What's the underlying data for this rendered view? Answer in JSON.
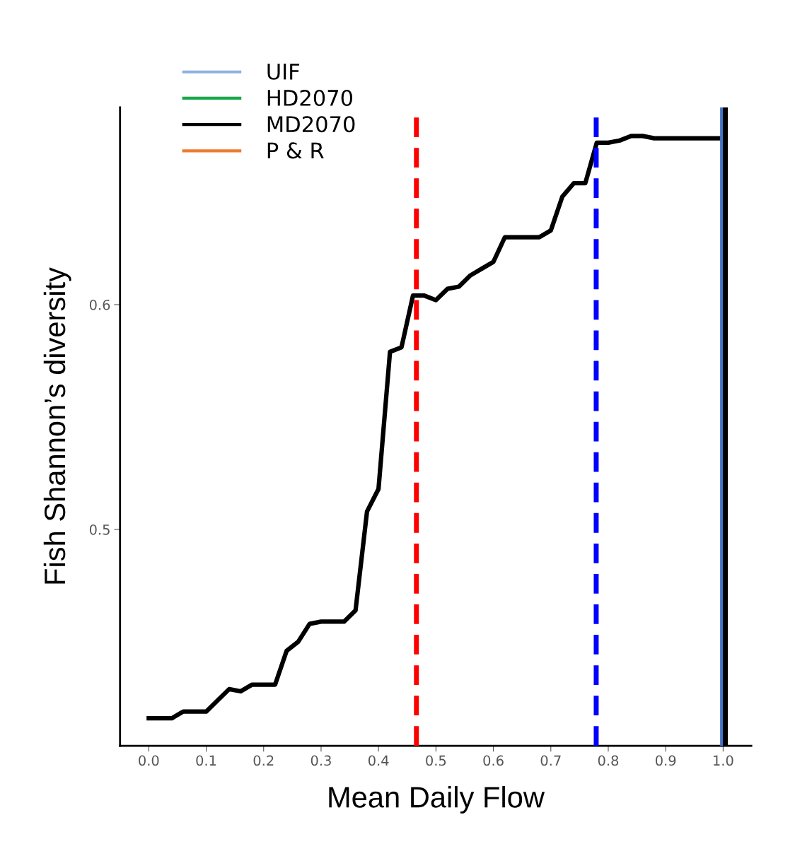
{
  "chart_data": {
    "type": "line",
    "xlabel": "Mean Daily Flow",
    "ylabel": "Fish Shannon’s diversity",
    "xlim": [
      -0.05,
      1.049
    ],
    "ylim": [
      0.4038,
      0.6877
    ],
    "xticks": [
      {
        "value": 0,
        "label": "0.0"
      },
      0.1,
      0.2,
      0.3,
      0.4,
      0.5,
      0.6,
      0.7,
      0.8,
      0.9,
      {
        "value": 1,
        "label": "1.0"
      }
    ],
    "yticks": [
      0.5,
      0.6
    ],
    "grid": false,
    "legend": "top left",
    "line_style": "solid",
    "marker": "none",
    "series": [
      {
        "name": "UIF",
        "color": "#8eb0e0"
      },
      {
        "name": "HD2070",
        "color": "#1aa64a"
      },
      {
        "name": "MD2070",
        "color": "#000000",
        "x": [
          0,
          0.04,
          0.06,
          0.08,
          0.1,
          0.12,
          0.14,
          0.16,
          0.18,
          0.2,
          0.22,
          0.24,
          0.26,
          0.28,
          0.3,
          0.32,
          0.34,
          0.36,
          0.38,
          0.4,
          0.42,
          0.44,
          0.46,
          0.48,
          0.5,
          0.52,
          0.54,
          0.56,
          0.58,
          0.6,
          0.62,
          0.64,
          0.66,
          0.68,
          0.7,
          0.72,
          0.74,
          0.76,
          0.78,
          0.8,
          0.82,
          0.84,
          0.86,
          0.88,
          1.0
        ],
        "values": [
          0.416,
          0.416,
          0.419,
          0.419,
          0.419,
          0.424,
          0.429,
          0.428,
          0.431,
          0.431,
          0.431,
          0.446,
          0.45,
          0.458,
          0.459,
          0.459,
          0.459,
          0.464,
          0.508,
          0.518,
          0.579,
          0.581,
          0.604,
          0.604,
          0.602,
          0.607,
          0.608,
          0.613,
          0.616,
          0.619,
          0.63,
          0.63,
          0.63,
          0.63,
          0.633,
          0.648,
          0.654,
          0.654,
          0.672,
          0.672,
          0.673,
          0.675,
          0.675,
          0.674,
          0.674
        ]
      },
      {
        "name": "P & R",
        "color": "#ed7d31"
      }
    ],
    "ref_lines": [
      {
        "axis": "x",
        "value": 0.466,
        "color": "#ff0000",
        "line_style": "dashed"
      },
      {
        "axis": "x",
        "value": 0.779,
        "color": "#0000ff",
        "line_style": "dashed"
      },
      {
        "axis": "x",
        "value": 0.999,
        "color": "#4472c4",
        "line_style": "solid"
      },
      {
        "axis": "x",
        "value": 1.004,
        "color": "#000000",
        "line_style": "solid"
      }
    ]
  }
}
